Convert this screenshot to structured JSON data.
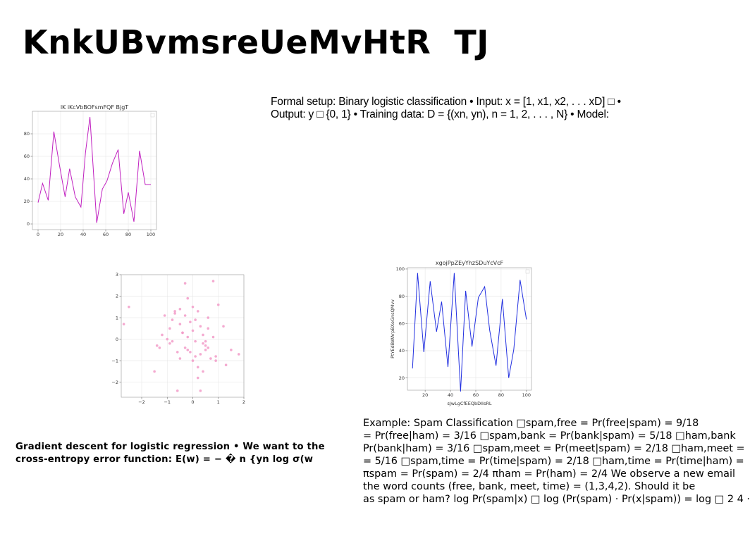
{
  "slide": {
    "title": "KnkUBvmsreUeMvHtR  TJ",
    "formal_text": "Formal setup: Binary logistic classification • Input: x = [1, x1, x2, . . . xD] □ • Output: y □ {0, 1} • Training data: D = {(xn, yn), n = 1, 2, . . . , N} • Model:",
    "gradient_text": "Gradient descent for logistic regression • We want to the cross-entropy error function: E(w) = − � n {yn log σ(w",
    "spam_lines": [
      "Example: Spam Classification □spam,free = Pr(free|spam) = 9/18",
      "= Pr(free|ham) = 3/16 □spam,bank = Pr(bank|spam) = 5/18 □ham,bank",
      "Pr(bank|ham) = 3/16 □spam,meet = Pr(meet|spam) = 2/18 □ham,meet =",
      "= 5/16 □spam,time = Pr(time|spam) = 2/18 □ham,time = Pr(time|ham) =",
      "πspam = Pr(spam) = 2/4 πham = Pr(ham) = 2/4 We observe a new email",
      "the word counts (free, bank, meet, time) = (1,3,4,2). Should it be",
      "as spam or ham? log Pr(spam|x) □ log (Pr(spam) · Pr(x|spam)) = log □ 2 4 ·"
    ]
  },
  "chart_data": [
    {
      "type": "line",
      "title": "lK iKcVbBOFsmFQF BjgT",
      "xlabel": "",
      "ylabel": "",
      "color": "#c020c0",
      "xlim": [
        -5,
        105
      ],
      "ylim": [
        -5,
        100
      ],
      "xticks": [
        0,
        20,
        40,
        60,
        80,
        100
      ],
      "yticks": [
        0,
        20,
        40,
        60,
        80
      ],
      "x": [
        0,
        4,
        9,
        14,
        19,
        24,
        28,
        33,
        38,
        42,
        46,
        52,
        57,
        61,
        66,
        71,
        76,
        80,
        85,
        90,
        95,
        100
      ],
      "y": [
        19,
        36,
        21,
        82,
        52,
        24,
        49,
        24,
        15,
        63,
        95,
        1,
        31,
        38,
        54,
        66,
        9,
        28,
        2,
        65,
        35,
        35
      ]
    },
    {
      "type": "scatter",
      "title": "",
      "xlabel": "",
      "ylabel": "",
      "color": "#f29bc8",
      "xlim": [
        -2.8,
        2.0
      ],
      "ylim": [
        -2.7,
        3.0
      ],
      "xticks": [
        -2,
        -1,
        0,
        1,
        2
      ],
      "yticks": [
        -2,
        -1,
        0,
        1,
        2,
        3
      ],
      "x": [
        -2.7,
        -2.5,
        -1.5,
        -1.2,
        -1.3,
        -1.1,
        -0.9,
        -0.8,
        -0.7,
        -0.6,
        -0.5,
        -0.4,
        -0.3,
        -0.2,
        -0.1,
        0.0,
        0.1,
        0.2,
        0.3,
        0.4,
        0.5,
        0.6,
        0.8,
        0.9,
        1.0,
        1.3,
        1.5,
        1.8,
        -0.3,
        -0.2,
        -0.5,
        0.0,
        0.2,
        0.4,
        0.5,
        -1.0,
        -0.6,
        0.1,
        0.3,
        0.6,
        -0.8,
        0.9,
        -0.1,
        0.2,
        -0.4,
        0.7,
        0.3,
        0.0,
        -0.2,
        0.5,
        1.2,
        -1.4,
        -0.9,
        0.4,
        0.8,
        -0.3,
        -0.7,
        0.1,
        0.6,
        -0.5
      ],
      "y": [
        0.7,
        1.5,
        -1.5,
        0.2,
        -0.4,
        1.1,
        0.5,
        0.9,
        1.2,
        -0.6,
        1.4,
        0.3,
        2.6,
        1.9,
        0.8,
        -1.0,
        -0.1,
        1.3,
        0.6,
        0.2,
        -0.5,
        1.0,
        2.7,
        -0.8,
        1.6,
        -1.2,
        -0.5,
        -0.7,
        -0.4,
        0.1,
        -0.9,
        0.4,
        -1.3,
        -0.2,
        -0.3,
        0.0,
        -2.4,
        0.9,
        -0.7,
        0.5,
        -0.1,
        -1.0,
        -0.6,
        -1.8,
        0.3,
        -0.9,
        -2.4,
        1.5,
        -0.5,
        -0.1,
        0.6,
        -0.3,
        -0.2,
        -1.5,
        0.1,
        1.1,
        1.3,
        -0.8,
        -0.4,
        0.7
      ]
    },
    {
      "type": "line",
      "title": "xgojPpZEyYhzSDuYcVcF",
      "xlabel": "sJwLgCfEEQbDIIsRL",
      "ylabel": "PtYEdBWArpBXeGnsQMvv",
      "color": "#2230e0",
      "xlim": [
        6,
        104
      ],
      "ylim": [
        11,
        101
      ],
      "xticks": [
        20,
        40,
        60,
        80,
        100
      ],
      "yticks": [
        20,
        40,
        60,
        80,
        100
      ],
      "x": [
        10,
        14,
        19,
        24,
        29,
        33,
        38,
        43,
        48,
        52,
        57,
        62,
        67,
        71,
        76,
        81,
        86,
        90,
        95,
        100
      ],
      "y": [
        27,
        97,
        39,
        91,
        54,
        76,
        28,
        97,
        10,
        84,
        43,
        79,
        87,
        55,
        29,
        78,
        20,
        41,
        92,
        63
      ]
    }
  ]
}
